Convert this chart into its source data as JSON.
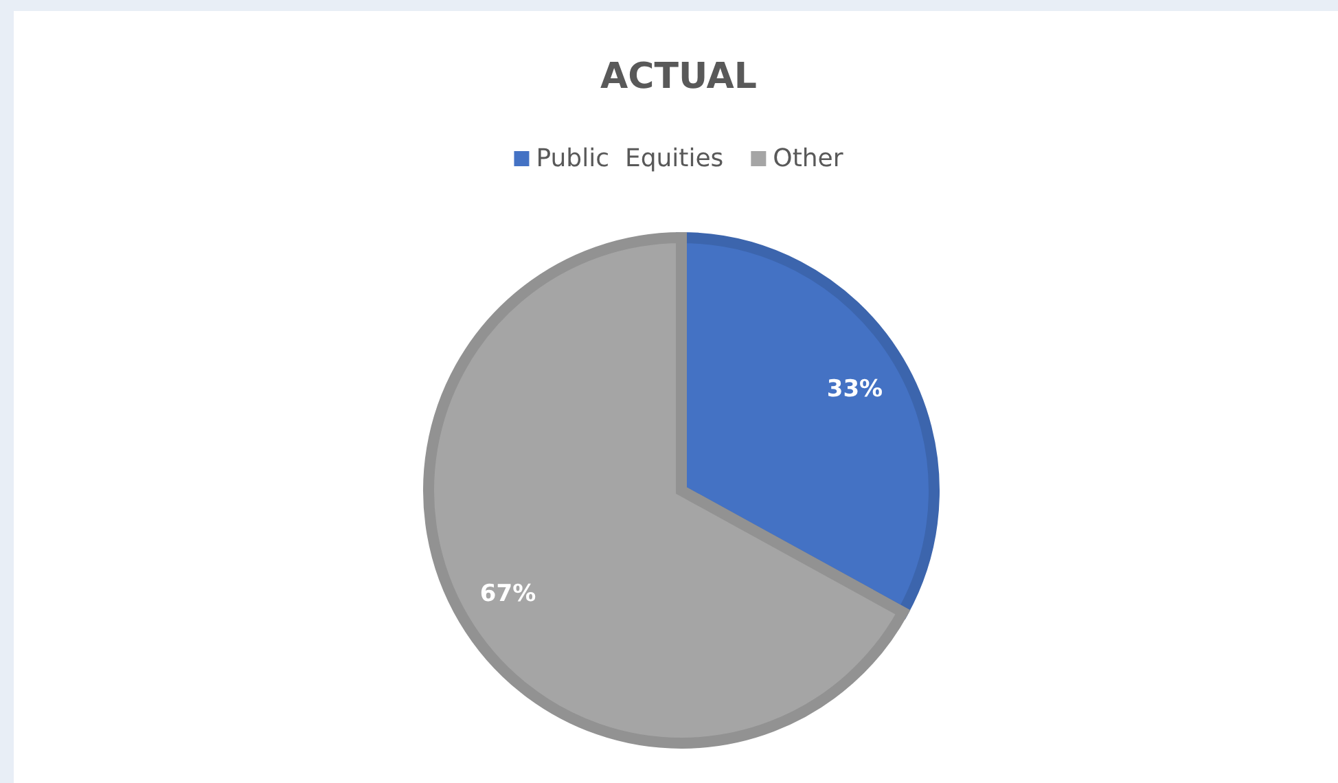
{
  "chart_data": {
    "type": "pie",
    "title": "ACTUAL",
    "categories": [
      "Public  Equities",
      "Other"
    ],
    "values": [
      33,
      67
    ],
    "colors": [
      "#4472c4",
      "#a5a5a5"
    ],
    "value_labels": [
      "33%",
      "67%"
    ],
    "legend": "top"
  }
}
